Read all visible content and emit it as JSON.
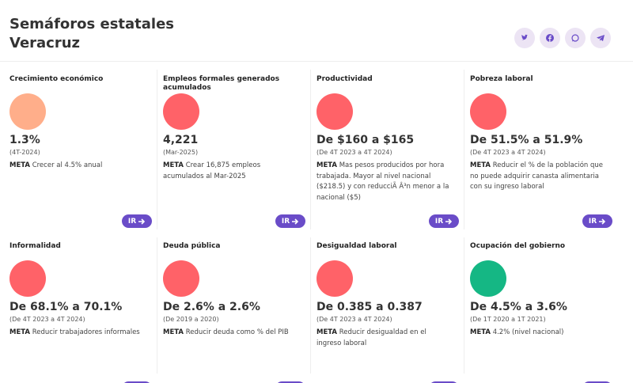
{
  "header": {
    "title": "Semáforos estatales",
    "subtitle": "Veracruz"
  },
  "cards": [
    {
      "title": "Crecimiento económico",
      "color": "#ffae8a",
      "value": "1.3%",
      "period": "(4T-2024)",
      "meta_label": "META",
      "meta_text": "Crecer al 4.5% anual",
      "button": "IR"
    },
    {
      "title": "Empleos formales generados acumulados",
      "color": "#ff6268",
      "value": "4,221",
      "period": "(Mar-2025)",
      "meta_label": "META",
      "meta_text": "Crear 16,875 empleos acumulados al Mar-2025",
      "button": "IR"
    },
    {
      "title": "Productividad",
      "color": "#ff6268",
      "value": "De $160 a $165",
      "period": "(De 4T 2023 a 4T 2024)",
      "meta_label": "META",
      "meta_text": "Mas pesos producidos por hora trabajada. Mayor al nivel nacional ($218.5) y con reducciÃ Â³n menor a la nacional ($5)",
      "button": "IR"
    },
    {
      "title": "Pobreza laboral",
      "color": "#ff6268",
      "value": "De 51.5% a 51.9%",
      "period": "(De 4T 2023 a 4T 2024)",
      "meta_label": "META",
      "meta_text": "Reducir el % de la población que no puede adquirir canasta alimentaria con su ingreso laboral",
      "button": "IR"
    },
    {
      "title": "Informalidad",
      "color": "#ff6268",
      "value": "De 68.1% a 70.1%",
      "period": "(De 4T 2023 a 4T 2024)",
      "meta_label": "META",
      "meta_text": "Reducir trabajadores informales",
      "button": "IR"
    },
    {
      "title": "Deuda pública",
      "color": "#ff6268",
      "value": "De 2.6% a 2.6%",
      "period": "(De 2019 a 2020)",
      "meta_label": "META",
      "meta_text": "Reducir deuda como % del PIB",
      "button": "IR"
    },
    {
      "title": "Desigualdad laboral",
      "color": "#ff6268",
      "value": "De 0.385 a 0.387",
      "period": "(De 4T 2023 a 4T 2024)",
      "meta_label": "META",
      "meta_text": "Reducir desigualdad en el ingreso laboral",
      "button": "IR"
    },
    {
      "title": "Ocupación del gobierno",
      "color": "#15b784",
      "value": "De 4.5% a 3.6%",
      "period": "(De 1T 2020 a 1T 2021)",
      "meta_label": "META",
      "meta_text": "4.2% (nivel nacional)",
      "button": "IR"
    }
  ]
}
